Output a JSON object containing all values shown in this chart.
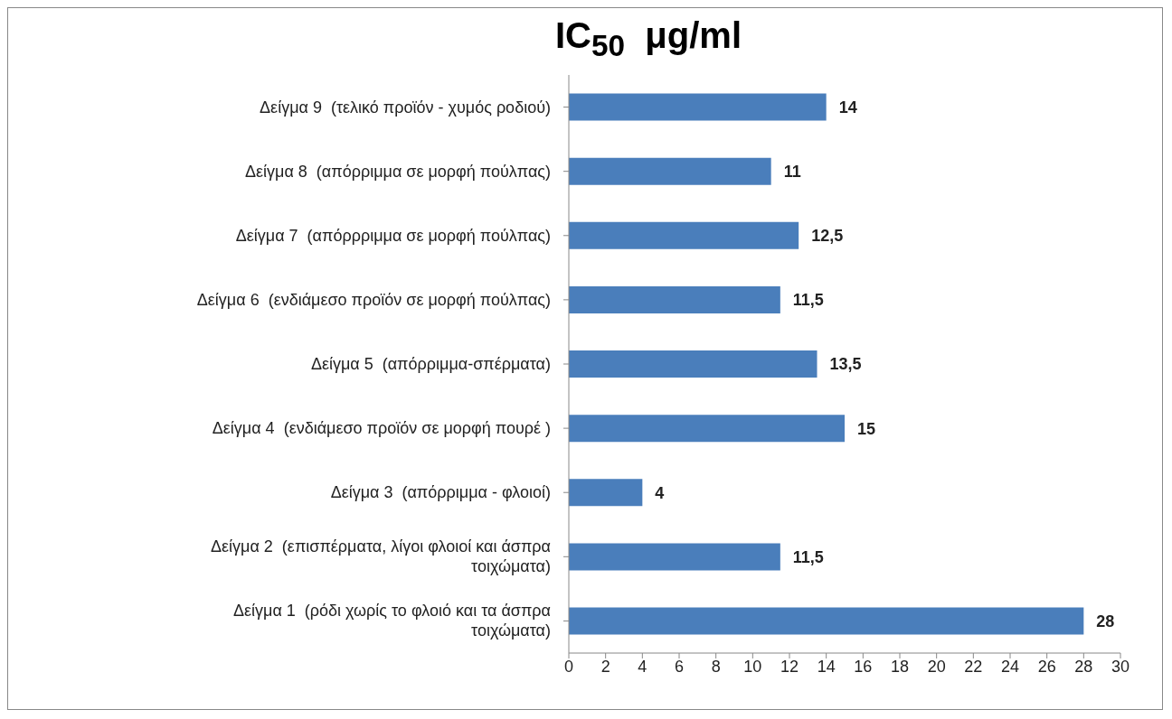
{
  "chart_data": {
    "type": "bar",
    "orientation": "horizontal",
    "title": "IC$_{50}$  μg/ml",
    "categories": [
      "Δείγμα 9  (τελικό προϊόν - χυμός ροδιού)",
      "Δείγμα 8  (απόρριμμα σε μορφή πούλπας)",
      "Δείγμα 7  (απόρρριμμα σε μορφή πούλπας)",
      "Δείγμα 6  (ενδιάμεσο προϊόν σε μορφή πούλπας)",
      "Δείγμα 5  (απόρριμμα-σπέρματα)",
      "Δείγμα 4  (ενδιάμεσο προϊόν σε μορφή πουρέ )",
      "Δείγμα 3  (απόρριμμα - φλοιοί)",
      "Δείγμα 2  (επισπέρματα, λίγοι φλοιοί και άσπρα τοιχώματα)",
      "Δείγμα 1  (ρόδι χωρίς το φλοιό και τα άσπρα τοιχώματα)"
    ],
    "values": [
      14,
      11,
      12.5,
      11.5,
      13.5,
      15,
      4,
      11.5,
      28
    ],
    "value_labels": [
      "14",
      "11",
      "12,5",
      "11,5",
      "13,5",
      "15",
      "4",
      "11,5",
      "28"
    ],
    "color": "#4a7ebb",
    "xlim": [
      0,
      30
    ],
    "xticks": [
      0,
      2,
      4,
      6,
      8,
      10,
      12,
      14,
      16,
      18,
      20,
      22,
      24,
      26,
      28,
      30
    ],
    "grid": false,
    "legend": false
  }
}
